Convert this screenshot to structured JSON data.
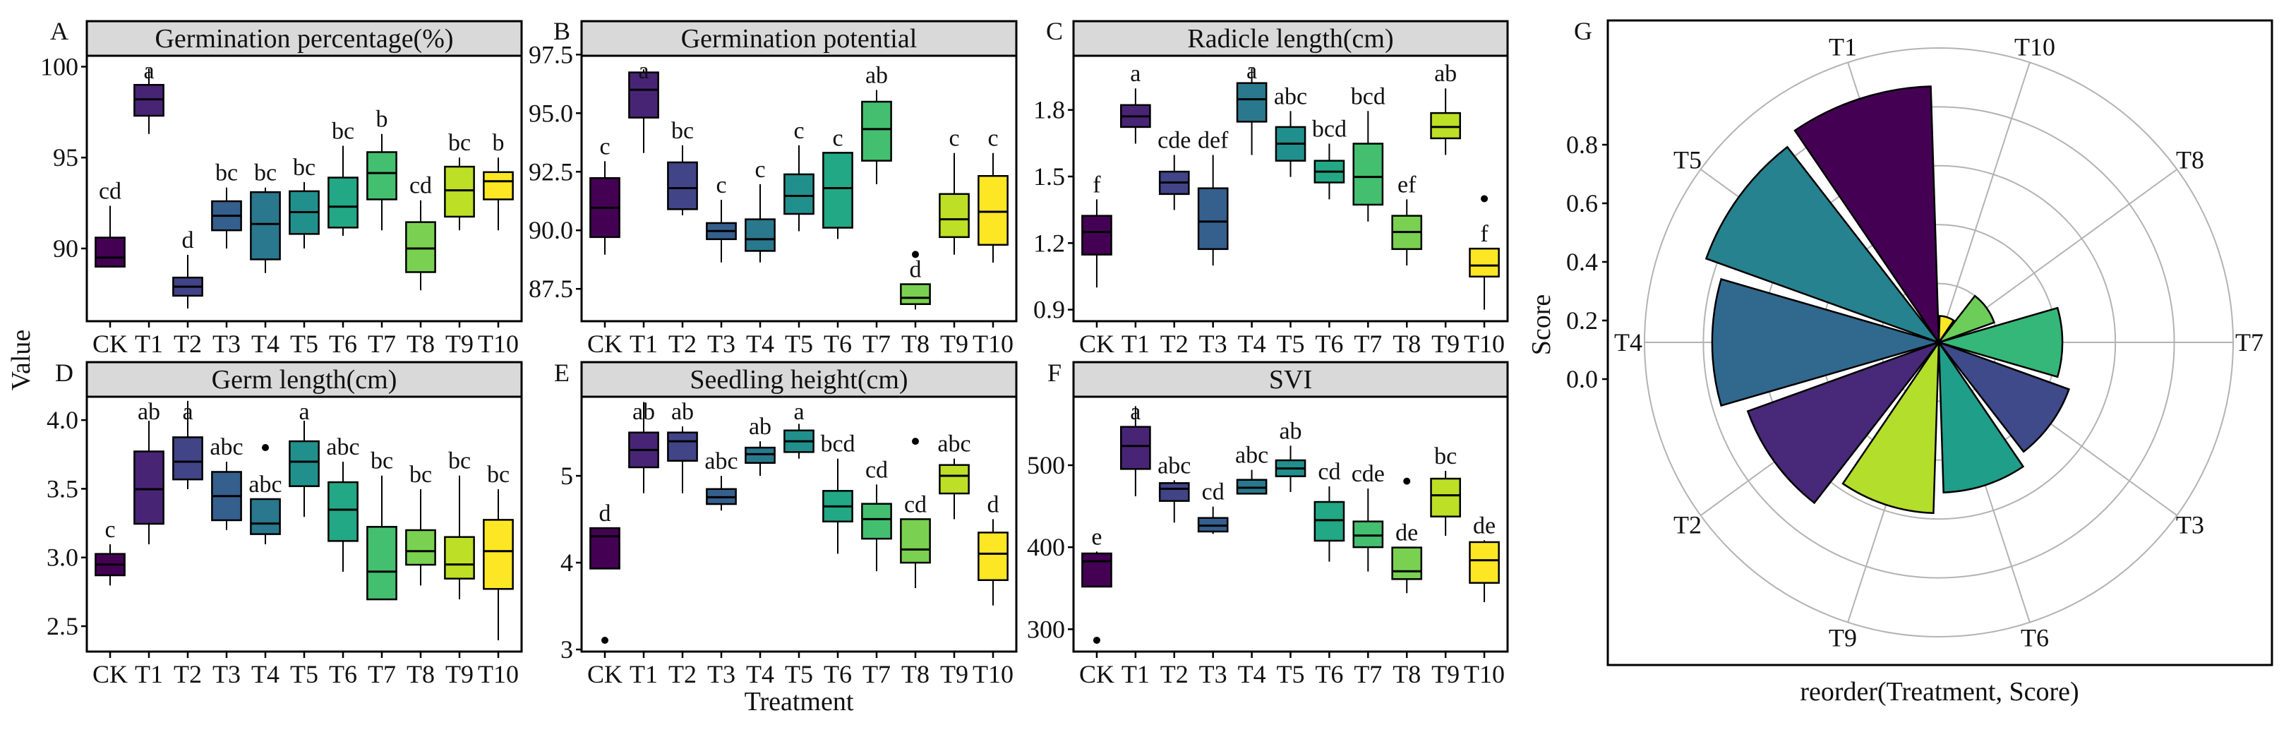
{
  "figure": {
    "y_label": "Value",
    "x_label": "Treatment"
  },
  "chart_data": [
    {
      "panel": "A",
      "type": "boxplot",
      "title": "Germination percentage(%)",
      "categories": [
        "CK",
        "T1",
        "T2",
        "T3",
        "T4",
        "T5",
        "T6",
        "T7",
        "T8",
        "T9",
        "T10"
      ],
      "yticks": [
        90,
        95,
        100
      ],
      "ytick_labels": [
        "90",
        "95",
        "100"
      ],
      "ylim": [
        86.0,
        100.6
      ],
      "stats": [
        [
          89.0,
          89.0,
          89.5,
          90.6,
          92.35
        ],
        [
          96.3,
          97.3,
          98.2,
          99.0,
          99.9
        ],
        [
          86.7,
          87.4,
          87.9,
          88.4,
          89.65
        ],
        [
          90.0,
          91.0,
          91.8,
          92.6,
          93.35
        ],
        [
          88.65,
          89.4,
          91.35,
          93.1,
          93.35
        ],
        [
          90.0,
          90.8,
          92.0,
          93.15,
          93.65
        ],
        [
          90.7,
          91.15,
          92.3,
          93.9,
          95.65
        ],
        [
          91.0,
          92.7,
          94.15,
          95.3,
          96.3
        ],
        [
          87.7,
          88.7,
          90.0,
          91.45,
          92.65
        ],
        [
          91.0,
          91.75,
          93.2,
          94.5,
          95.0
        ],
        [
          91.0,
          92.7,
          93.7,
          94.2,
          95.0
        ]
      ],
      "outliers": [
        [],
        [],
        [],
        [],
        [],
        [],
        [],
        [],
        [],
        [],
        []
      ],
      "letters": [
        "cd",
        "a",
        "d",
        "bc",
        "bc",
        "bc",
        "bc",
        "b",
        "cd",
        "bc",
        "b"
      ]
    },
    {
      "panel": "B",
      "type": "boxplot",
      "title": "Germination potential",
      "categories": [
        "CK",
        "T1",
        "T2",
        "T3",
        "T4",
        "T5",
        "T6",
        "T7",
        "T8",
        "T9",
        "T10"
      ],
      "yticks": [
        87.5,
        90,
        92.5,
        95,
        97.5
      ],
      "ytick_labels": [
        "87.5",
        "90.0",
        "92.5",
        "95.0",
        "97.5"
      ],
      "ylim": [
        86.12,
        97.45
      ],
      "stats": [
        [
          88.96,
          89.71,
          90.96,
          92.23,
          92.95
        ],
        [
          93.3,
          94.81,
          96.0,
          96.74,
          96.87
        ],
        [
          90.64,
          90.9,
          91.8,
          92.9,
          93.63
        ],
        [
          88.63,
          89.62,
          89.97,
          90.31,
          91.3
        ],
        [
          88.63,
          89.12,
          89.62,
          90.47,
          91.97
        ],
        [
          89.96,
          90.7,
          91.47,
          92.39,
          93.63
        ],
        [
          89.63,
          90.11,
          91.8,
          93.31,
          93.31
        ],
        [
          91.97,
          92.97,
          94.32,
          95.49,
          95.99
        ],
        [
          86.62,
          86.85,
          87.12,
          87.7,
          87.7
        ],
        [
          88.96,
          89.71,
          90.47,
          91.55,
          93.3
        ],
        [
          88.62,
          89.38,
          90.79,
          92.32,
          93.3
        ]
      ],
      "outliers": [
        [],
        [],
        [],
        [],
        [],
        [],
        [],
        [],
        [
          88.97
        ],
        [],
        []
      ],
      "letters": [
        "c",
        "a",
        "bc",
        "c",
        "c",
        "c",
        "c",
        "ab",
        "d",
        "c",
        "c"
      ]
    },
    {
      "panel": "C",
      "type": "boxplot",
      "title": "Radicle length(cm)",
      "categories": [
        "CK",
        "T1",
        "T2",
        "T3",
        "T4",
        "T5",
        "T6",
        "T7",
        "T8",
        "T9",
        "T10"
      ],
      "yticks": [
        0.9,
        1.2,
        1.5,
        1.8
      ],
      "ytick_labels": [
        "0.9",
        "1.2",
        "1.5",
        "1.8"
      ],
      "ylim": [
        0.848,
        2.044
      ],
      "stats": [
        [
          1.0,
          1.148,
          1.25,
          1.323,
          1.397
        ],
        [
          1.648,
          1.723,
          1.771,
          1.822,
          1.897
        ],
        [
          1.349,
          1.421,
          1.473,
          1.522,
          1.597
        ],
        [
          1.099,
          1.173,
          1.297,
          1.447,
          1.597
        ],
        [
          1.597,
          1.747,
          1.848,
          1.921,
          1.988
        ],
        [
          1.498,
          1.571,
          1.648,
          1.723,
          1.795
        ],
        [
          1.397,
          1.473,
          1.522,
          1.571,
          1.648
        ],
        [
          1.297,
          1.373,
          1.498,
          1.648,
          1.795
        ],
        [
          1.099,
          1.173,
          1.25,
          1.323,
          1.397
        ],
        [
          1.597,
          1.672,
          1.723,
          1.786,
          1.897
        ],
        [
          0.9,
          1.049,
          1.099,
          1.175,
          1.175
        ]
      ],
      "outliers": [
        [],
        [],
        [],
        [],
        [],
        [],
        [],
        [],
        [],
        [],
        [
          1.4
        ]
      ],
      "letters": [
        "f",
        "a",
        "cde",
        "def",
        "a",
        "abc",
        "bcd",
        "bcd",
        "ef",
        "ab",
        "f"
      ]
    },
    {
      "panel": "D",
      "type": "boxplot",
      "title": "Germ length(cm)",
      "categories": [
        "CK",
        "T1",
        "T2",
        "T3",
        "T4",
        "T5",
        "T6",
        "T7",
        "T8",
        "T9",
        "T10"
      ],
      "yticks": [
        2.5,
        3.0,
        3.5,
        4.0
      ],
      "ytick_labels": [
        "2.5",
        "3.0",
        "3.5",
        "4.0"
      ],
      "ylim": [
        2.315,
        4.17
      ],
      "stats": [
        [
          2.796,
          2.87,
          2.949,
          3.026,
          3.096
        ],
        [
          3.096,
          3.245,
          3.497,
          3.772,
          3.995
        ],
        [
          3.497,
          3.568,
          3.697,
          3.875,
          4.14
        ],
        [
          3.2,
          3.271,
          3.447,
          3.623,
          3.697
        ],
        [
          3.096,
          3.17,
          3.247,
          3.425,
          3.425
        ],
        [
          3.295,
          3.519,
          3.697,
          3.846,
          3.995
        ],
        [
          2.896,
          3.12,
          3.348,
          3.548,
          3.697
        ],
        [
          2.695,
          2.695,
          2.897,
          3.223,
          3.596
        ],
        [
          2.796,
          2.947,
          3.046,
          3.199,
          3.497
        ],
        [
          2.695,
          2.846,
          2.949,
          3.149,
          3.596
        ],
        [
          2.397,
          2.771,
          3.046,
          3.274,
          3.497
        ]
      ],
      "outliers": [
        [],
        [],
        [],
        [],
        [
          3.8
        ],
        [],
        [],
        [],
        [],
        [],
        []
      ],
      "letters": [
        "c",
        "ab",
        "a",
        "abc",
        "abc",
        "a",
        "abc",
        "bc",
        "bc",
        "bc",
        "bc"
      ]
    },
    {
      "panel": "E",
      "type": "boxplot",
      "title": "Seedling height(cm)",
      "categories": [
        "CK",
        "T1",
        "T2",
        "T3",
        "T4",
        "T5",
        "T6",
        "T7",
        "T8",
        "T9",
        "T10"
      ],
      "yticks": [
        3,
        4,
        5
      ],
      "ytick_labels": [
        "3",
        "4",
        "5"
      ],
      "ylim": [
        2.976,
        5.911
      ],
      "stats": [
        [
          3.932,
          3.932,
          4.304,
          4.398,
          4.398
        ],
        [
          4.8,
          5.098,
          5.298,
          5.499,
          5.85
        ],
        [
          4.8,
          5.173,
          5.398,
          5.499,
          5.57
        ],
        [
          4.6,
          4.675,
          4.753,
          4.848,
          5.0
        ],
        [
          5.0,
          5.149,
          5.249,
          5.325,
          5.398
        ],
        [
          5.198,
          5.274,
          5.398,
          5.523,
          5.599
        ],
        [
          4.103,
          4.474,
          4.648,
          4.827,
          5.198
        ],
        [
          3.902,
          4.276,
          4.501,
          4.678,
          4.9
        ],
        [
          3.707,
          4.0,
          4.152,
          4.501,
          4.501
        ],
        [
          4.501,
          4.797,
          5.0,
          5.125,
          5.198
        ],
        [
          3.507,
          3.799,
          4.103,
          4.347,
          4.501
        ]
      ],
      "outliers": [
        [
          3.106
        ],
        [],
        [],
        [],
        [],
        [],
        [],
        [],
        [
          5.398
        ],
        [],
        []
      ],
      "letters": [
        "d",
        "ab",
        "ab",
        "abc",
        "ab",
        "a",
        "bcd",
        "cd",
        "cd",
        "abc",
        "d"
      ]
    },
    {
      "panel": "F",
      "type": "boxplot",
      "title": "SVI",
      "categories": [
        "CK",
        "T1",
        "T2",
        "T3",
        "T4",
        "T5",
        "T6",
        "T7",
        "T8",
        "T9",
        "T10"
      ],
      "yticks": [
        300,
        400,
        500
      ],
      "ytick_labels": [
        "300",
        "400",
        "500"
      ],
      "ylim": [
        272.7,
        583.5
      ],
      "stats": [
        [
          351.9,
          351.9,
          382.9,
          392.4,
          394.7
        ],
        [
          462.1,
          495.4,
          523.5,
          546.8,
          572.0
        ],
        [
          430.0,
          456.4,
          471.3,
          478.2,
          481.6
        ],
        [
          416.2,
          419.1,
          426.3,
          435.7,
          449.5
        ],
        [
          465.3,
          465.3,
          472.5,
          482.2,
          494.3
        ],
        [
          467.3,
          486.5,
          496.0,
          506.0,
          523.8
        ],
        [
          382.4,
          407.9,
          432.9,
          455.2,
          474.2
        ],
        [
          370.3,
          400.0,
          414.2,
          431.4,
          471.6
        ],
        [
          343.9,
          361.1,
          370.6,
          399.6,
          399.6
        ],
        [
          413.9,
          437.4,
          463.3,
          483.6,
          493.1
        ],
        [
          333.0,
          356.5,
          384.1,
          406.2,
          408.5
        ]
      ],
      "outliers": [
        [
          286.5
        ],
        [],
        [],
        [],
        [],
        [],
        [],
        [],
        [
          480.5
        ],
        [],
        []
      ],
      "letters": [
        "e",
        "a",
        "abc",
        "cd",
        "abc",
        "ab",
        "cd",
        "cde",
        "de",
        "bc",
        "de"
      ]
    },
    {
      "panel": "G",
      "type": "polar-bar",
      "xlabel": "reorder(Treatment, Score)",
      "ylabel": "Score",
      "categories": [
        "T10",
        "T8",
        "T7",
        "T3",
        "T6",
        "T9",
        "T2",
        "T4",
        "T5",
        "T1"
      ],
      "values": [
        0.09,
        0.2,
        0.42,
        0.47,
        0.51,
        0.58,
        0.69,
        0.77,
        0.84,
        0.87
      ],
      "colors": [
        "#FDE725",
        "#6DCD59",
        "#35B779",
        "#3E4A89",
        "#1F9E89",
        "#B4DE2C",
        "#482878",
        "#31688E",
        "#26828E",
        "#440154"
      ],
      "yticks": [
        0,
        0.2,
        0.4,
        0.6,
        0.8
      ],
      "ytick_labels": [
        "0.0",
        "0.2",
        "0.4",
        "0.6",
        "0.8"
      ],
      "ylim": [
        0,
        1.0
      ]
    }
  ],
  "box_colors": [
    "#440154",
    "#482475",
    "#414487",
    "#355F8D",
    "#2A788E",
    "#21908D",
    "#22A884",
    "#44BF70",
    "#7AD151",
    "#BDDF26",
    "#FDE725"
  ]
}
